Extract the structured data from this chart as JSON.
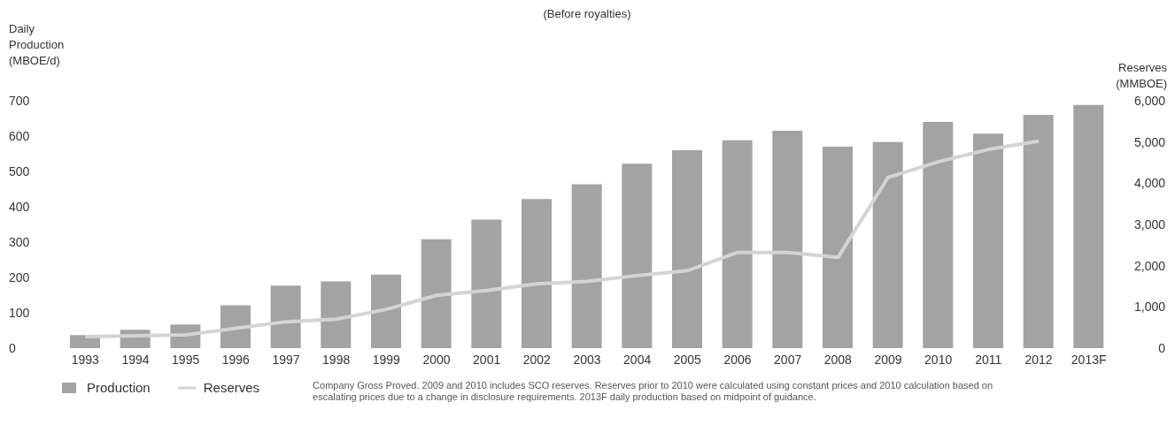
{
  "chart_data": {
    "type": "bar",
    "subtitle": "(Before royalties)",
    "ylabel": "Daily Production (MBOE/d)",
    "y2label": "Reserves (MMBOE)",
    "categories": [
      "1993",
      "1994",
      "1995",
      "1996",
      "1997",
      "1998",
      "1999",
      "2000",
      "2001",
      "2002",
      "2003",
      "2004",
      "2005",
      "2006",
      "2007",
      "2008",
      "2009",
      "2010",
      "2011",
      "2012",
      "2013F"
    ],
    "series": [
      {
        "name": "Production",
        "color": "#a3a3a3",
        "values": [
          37,
          52,
          67,
          121,
          177,
          189,
          208,
          308,
          364,
          422,
          464,
          522,
          560,
          588,
          615,
          570,
          583,
          640,
          607,
          660,
          688
        ]
      },
      {
        "name": "Reserves",
        "type": "line",
        "axis": "y2",
        "color": "#d4d4d4",
        "values": [
          280,
          300,
          320,
          480,
          640,
          700,
          940,
          1280,
          1400,
          1560,
          1620,
          1760,
          1880,
          2320,
          2320,
          2200,
          4140,
          4520,
          4820,
          5020,
          null
        ]
      }
    ],
    "ylim": [
      0,
      700
    ],
    "yticks": [
      0,
      100,
      200,
      300,
      400,
      500,
      600,
      700
    ],
    "y2lim": [
      0,
      6000
    ],
    "y2ticks": [
      0,
      {
        "value": 1000,
        "label": "1,000"
      },
      {
        "value": 2000,
        "label": "2,000"
      },
      {
        "value": 3000,
        "label": "3,000"
      },
      {
        "value": 4000,
        "label": "4,000"
      },
      {
        "value": 5000,
        "label": "5,000"
      },
      {
        "value": 6000,
        "label": "6,000"
      }
    ],
    "grid": false,
    "legend": "bottom left",
    "marker": "none",
    "annotations": [
      "Company Gross Proved. 2009 and 2010 includes SCO reserves. Reserves prior to 2010 were calculated using constant prices and 2010 calculation based on escalating prices due to a change in disclosure requirements. 2013F daily production based on midpoint of guidance."
    ]
  }
}
